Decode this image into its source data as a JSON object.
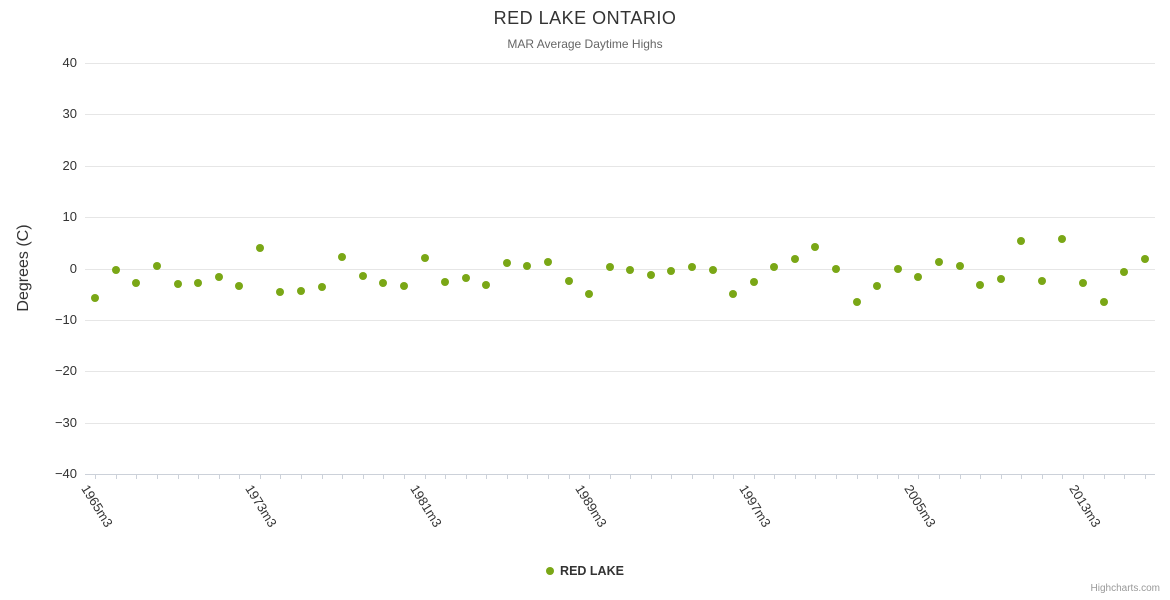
{
  "title": "RED LAKE ONTARIO",
  "subtitle": "MAR Average Daytime Highs",
  "legend": {
    "series_label": "RED LAKE"
  },
  "credits": "Highcharts.com",
  "colors": {
    "point": "#7aa716",
    "grid": "#e6e6e6",
    "axis_line": "#ccd1d9",
    "title_text": "#333333",
    "subtitle_text": "#666666",
    "label_text": "#333333",
    "credits_text": "#999999"
  },
  "chart_data": {
    "type": "scatter",
    "title": "RED LAKE ONTARIO",
    "subtitle": "MAR Average Daytime Highs",
    "xlabel": "",
    "ylabel": "Degrees (C)",
    "ylim": [
      -40,
      40
    ],
    "ytick_step": 10,
    "grid": true,
    "legend_position": "bottom",
    "xtick_label_start": 1,
    "xtick_label_interval": 8,
    "visible_xtick_labels": [
      "1965m3",
      "1973m3",
      "1981m3",
      "1989m3",
      "1997m3",
      "2005m3",
      "2013m3"
    ],
    "categories": [
      "1964m3",
      "1965m3",
      "1966m3",
      "1967m3",
      "1968m3",
      "1969m3",
      "1970m3",
      "1971m3",
      "1972m3",
      "1973m3",
      "1974m3",
      "1975m3",
      "1976m3",
      "1977m3",
      "1978m3",
      "1979m3",
      "1980m3",
      "1981m3",
      "1982m3",
      "1983m3",
      "1984m3",
      "1985m3",
      "1986m3",
      "1987m3",
      "1988m3",
      "1989m3",
      "1990m3",
      "1991m3",
      "1992m3",
      "1993m3",
      "1994m3",
      "1995m3",
      "1996m3",
      "1997m3",
      "1998m3",
      "1999m3",
      "2000m3",
      "2001m3",
      "2002m3",
      "2003m3",
      "2004m3",
      "2005m3",
      "2006m3",
      "2007m3",
      "2008m3",
      "2009m3",
      "2010m3",
      "2011m3",
      "2012m3",
      "2013m3",
      "2014m3",
      "2015m3"
    ],
    "series": [
      {
        "name": "RED LAKE",
        "values": [
          -5.8,
          -0.3,
          -2.8,
          0.4,
          -3.0,
          -2.9,
          -1.7,
          -3.4,
          3.9,
          -4.6,
          -4.4,
          -3.6,
          2.3,
          -1.5,
          -2.9,
          -3.5,
          2.0,
          -2.6,
          -1.9,
          -3.2,
          1.1,
          0.4,
          1.3,
          -2.5,
          -5.0,
          0.2,
          -0.3,
          -1.2,
          -0.5,
          0.2,
          -0.3,
          -4.9,
          -2.7,
          0.2,
          1.9,
          4.1,
          0.0,
          -6.6,
          -3.4,
          0.0,
          -1.7,
          1.2,
          0.5,
          -3.2,
          -2.1,
          5.3,
          -2.5,
          5.8,
          -2.9,
          -6.6,
          -0.7,
          1.8
        ]
      }
    ]
  }
}
